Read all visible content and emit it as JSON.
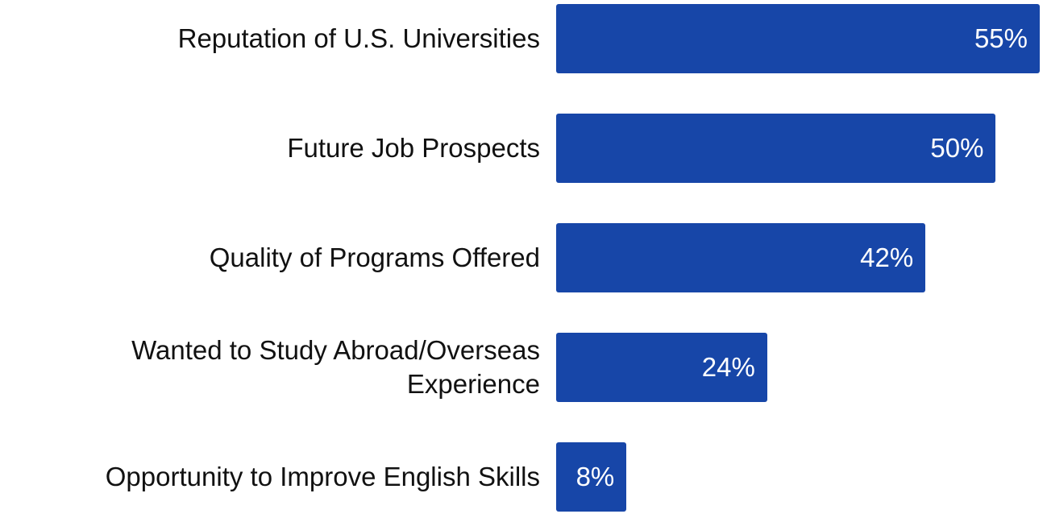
{
  "chart_data": {
    "type": "bar",
    "orientation": "horizontal",
    "categories": [
      "Reputation of U.S. Universities",
      "Future Job Prospects",
      "Quality of Programs Offered",
      "Wanted to Study Abroad/Overseas Experience",
      "Opportunity to Improve English Skills"
    ],
    "values": [
      55,
      50,
      42,
      24,
      8
    ],
    "value_labels": [
      "55%",
      "50%",
      "42%",
      "24%",
      "8%"
    ],
    "color": "#1746a8"
  }
}
